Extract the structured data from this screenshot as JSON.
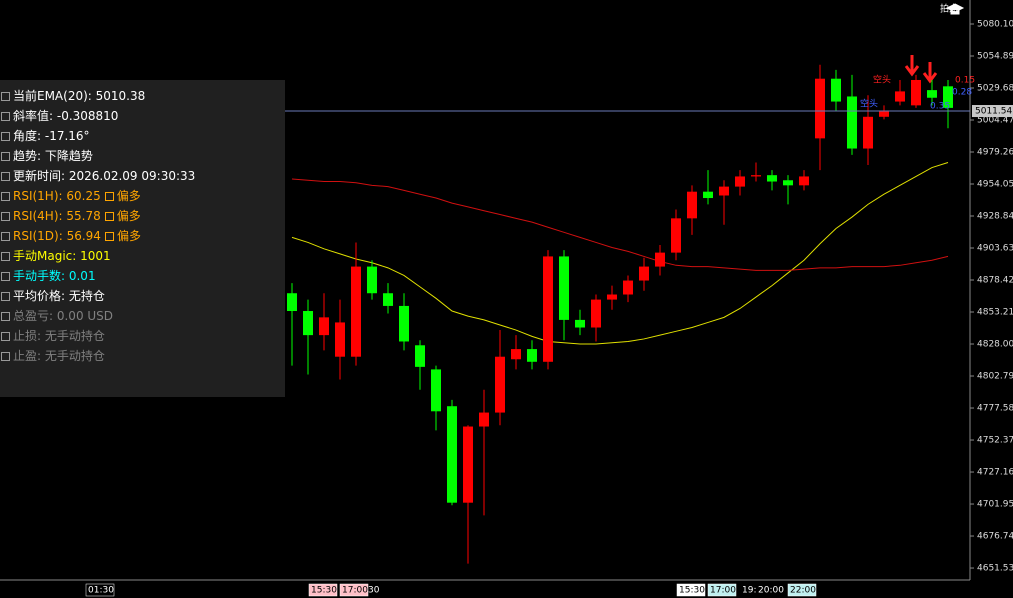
{
  "top_label": "拍点",
  "panel": {
    "rows": [
      {
        "text": "当前EMA(20): 5010.38",
        "color": "#ffffff"
      },
      {
        "text": "斜率值: -0.308810",
        "color": "#ffffff"
      },
      {
        "text": "角度: -17.16°",
        "color": "#ffffff"
      },
      {
        "text": "趋势: 下降趋势",
        "color": "#ffffff"
      },
      {
        "text": "更新时间: 2026.02.09 09:30:33",
        "color": "#ffffff"
      },
      {
        "text": "RSI(1H): 60.25",
        "tag": "偏多",
        "color": "#ffa500"
      },
      {
        "text": "RSI(4H): 55.78",
        "tag": "偏多",
        "color": "#ffa500"
      },
      {
        "text": "RSI(1D): 56.94",
        "tag": "偏多",
        "color": "#ffa500"
      },
      {
        "text": "手动Magic: 1001",
        "color": "#ffff00"
      },
      {
        "text": "手动手数: 0.01",
        "color": "#00ffff"
      },
      {
        "text": "平均价格: 无持仓",
        "color": "#ffffff"
      },
      {
        "text": "总盈亏: 0.00 USD",
        "color": "#808080"
      },
      {
        "text": "止损: 无手动持仓",
        "color": "#808080"
      },
      {
        "text": "止盈: 无手动持仓",
        "color": "#808080"
      }
    ]
  },
  "chart_data": {
    "type": "candlestick",
    "up_color": "#ff0000",
    "down_color": "#00ff00",
    "open": [
      4868,
      4854,
      4835,
      4818,
      4818,
      4889,
      4868,
      4858,
      4827,
      4808,
      4779,
      4703,
      4763,
      4774,
      4816,
      4824,
      4814,
      4897,
      4847,
      4841,
      4863,
      4867,
      4878,
      4889,
      4900,
      4927,
      4948,
      4945,
      4952,
      4960,
      4961,
      4957,
      4953,
      4990,
      5037,
      5023,
      4982,
      5007,
      5019,
      5016,
      5028,
      5031
    ],
    "high": [
      4876,
      4863,
      4868,
      4863,
      4908,
      4894,
      4876,
      4868,
      4831,
      4811,
      4784,
      4764,
      4792,
      4839,
      4835,
      4831,
      4902,
      4902,
      4855,
      4867,
      4874,
      4882,
      4896,
      4906,
      4934,
      4953,
      4965,
      4957,
      4965,
      4971,
      4965,
      4961,
      4965,
      5048,
      5044,
      5040,
      5024,
      5016,
      5036,
      5040,
      5036,
      5036
    ],
    "low": [
      4811,
      4804,
      4823,
      4800,
      4811,
      4863,
      4852,
      4823,
      4792,
      4760,
      4701,
      4655,
      4693,
      4764,
      4808,
      4808,
      4808,
      4831,
      4835,
      4830,
      4855,
      4861,
      4870,
      4882,
      4894,
      4914,
      4938,
      4922,
      4945,
      4956,
      4949,
      4938,
      4949,
      4965,
      5012,
      4977,
      4969,
      5005,
      5016,
      5014,
      5016,
      4998
    ],
    "close": [
      4854,
      4835,
      4849,
      4845,
      4889,
      4868,
      4858,
      4830,
      4810,
      4775,
      4703,
      4763,
      4774,
      4818,
      4824,
      4814,
      4897,
      4847,
      4841,
      4863,
      4867,
      4878,
      4889,
      4900,
      4927,
      4948,
      4943,
      4952,
      4960,
      4961,
      4956,
      4953,
      4960,
      5037,
      5019,
      4982,
      5007,
      5012,
      5027,
      5036,
      5022,
      5014
    ],
    "lines": [
      {
        "color": "#e0e000",
        "values": [
          4912,
          4908,
          4903,
          4899,
          4895,
          4892,
          4888,
          4882,
          4873,
          4864,
          4854,
          4850,
          4847,
          4843,
          4839,
          4834,
          4830,
          4829,
          4828,
          4828,
          4829,
          4830,
          4832,
          4835,
          4838,
          4841,
          4845,
          4849,
          4856,
          4865,
          4874,
          4884,
          4894,
          4907,
          4919,
          4928,
          4938,
          4946,
          4953,
          4960,
          4967,
          4971
        ]
      },
      {
        "color": "#d01010",
        "values": [
          4958,
          4957,
          4956,
          4956,
          4955,
          4953,
          4952,
          4949,
          4946,
          4943,
          4939,
          4936,
          4933,
          4930,
          4927,
          4924,
          4920,
          4916,
          4912,
          4908,
          4904,
          4901,
          4897,
          4893,
          4890,
          4889,
          4889,
          4888,
          4887,
          4886,
          4886,
          4886,
          4887,
          4888,
          4888,
          4889,
          4889,
          4889,
          4890,
          4892,
          4894,
          4897
        ]
      }
    ],
    "current_price": 5011.54,
    "ylim": [
      4642.1,
      5099.0
    ],
    "yticks": [
      {
        "value": 5080.1,
        "label": "5080.10"
      },
      5054.89,
      5029.68,
      5004.47,
      4979.26,
      4954.05,
      4928.84,
      4903.63,
      4878.42,
      4853.21,
      {
        "value": 4828,
        "label": "4828.00"
      },
      4802.79,
      4777.58,
      4752.37,
      4727.16,
      4701.95,
      4676.74,
      4651.53
    ],
    "time_labels": [
      "01:30",
      "15:30",
      "17:00",
      "30",
      "15:30",
      "17:00",
      "19:",
      "20:00",
      "22:00"
    ],
    "annotations": [
      {
        "text": "空头",
        "color": "#ff2020"
      },
      {
        "text": "0.15",
        "color": "#ff2020"
      },
      {
        "text": "空头",
        "color": "#4060ff"
      },
      {
        "text": "0.28",
        "color": "#4060ff"
      },
      {
        "text": "0.35",
        "color": "#4060ff"
      }
    ]
  }
}
